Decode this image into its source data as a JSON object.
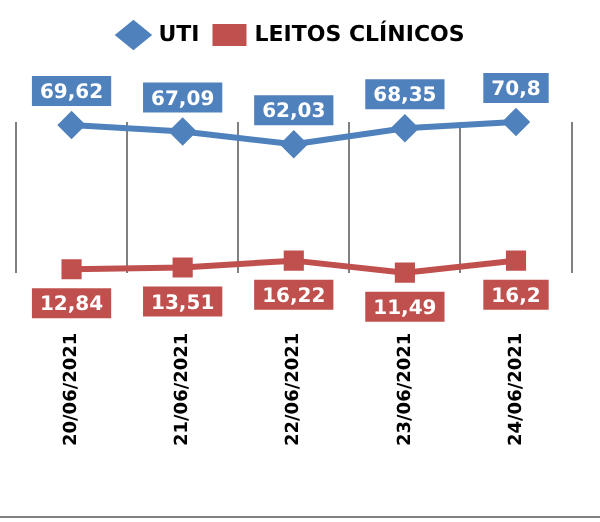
{
  "chart_data": {
    "type": "line",
    "categories": [
      "20/06/2021",
      "21/06/2021",
      "22/06/2021",
      "23/06/2021",
      "24/06/2021"
    ],
    "series": [
      {
        "name": "UTI",
        "color": "#4f81bd",
        "marker": "diamond",
        "values": [
          69.62,
          67.09,
          62.03,
          68.35,
          70.8
        ],
        "value_labels": [
          "69,62",
          "67,09",
          "62,03",
          "68,35",
          "70,8"
        ]
      },
      {
        "name": "LEITOS CLÍNICOS",
        "color": "#c0504d",
        "marker": "square",
        "values": [
          12.84,
          13.51,
          16.22,
          11.49,
          16.2
        ],
        "value_labels": [
          "12,84",
          "13,51",
          "16,22",
          "11,49",
          "16,2"
        ]
      }
    ],
    "legend": "top",
    "grid": "x",
    "tick_labels": "x"
  }
}
